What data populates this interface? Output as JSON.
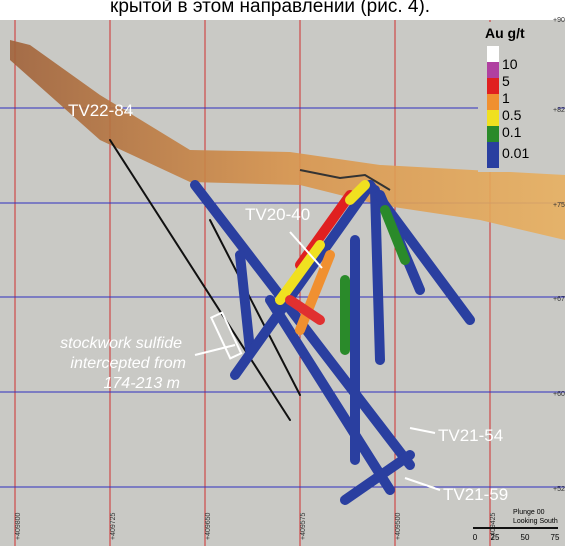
{
  "header": {
    "text": "крытой в этом направлении (рис. 4)."
  },
  "legend": {
    "title": "Au g/t",
    "entries": [
      "10",
      "5",
      "1",
      "0.5",
      "0.1",
      "0.01"
    ]
  },
  "holes": [
    "TV22-84",
    "TV20-40",
    "TV21-54",
    "TV21-59"
  ],
  "annotation": {
    "lines": [
      "stockwork sulfide",
      "intercepted from",
      "174-213 m"
    ]
  },
  "eastings": [
    "+409800",
    "+409725",
    "+409650",
    "+409575",
    "+409500",
    "+409425"
  ],
  "elevations": [
    "+90",
    "+82",
    "+75",
    "+67",
    "+60",
    "+52"
  ],
  "scale": {
    "caption": [
      "Plunge 00",
      "Looking South"
    ],
    "ticks": [
      "0",
      "25",
      "50",
      "75"
    ]
  }
}
